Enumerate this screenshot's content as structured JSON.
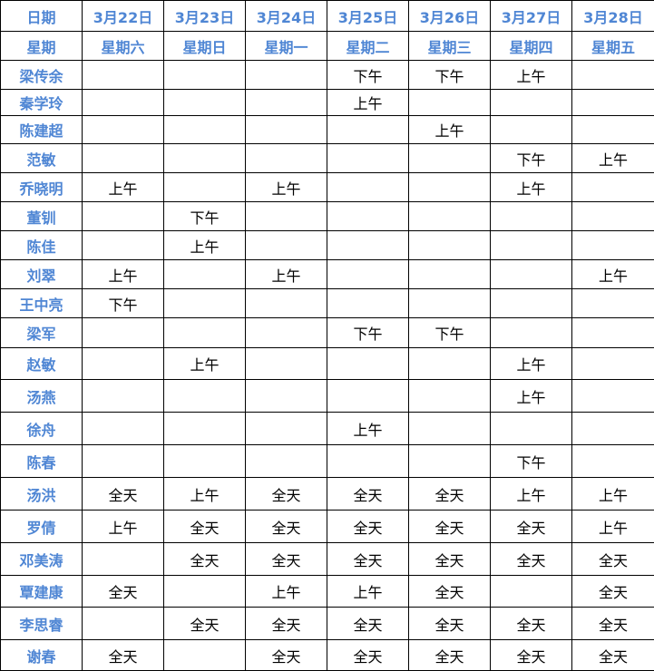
{
  "header": {
    "date_label": "日期",
    "weekday_label": "星期",
    "dates": [
      "3月22日",
      "3月23日",
      "3月24日",
      "3月25日",
      "3月26日",
      "3月27日",
      "3月28日"
    ],
    "weekdays": [
      "星期六",
      "星期日",
      "星期一",
      "星期二",
      "星期三",
      "星期四",
      "星期五"
    ]
  },
  "rows": [
    {
      "name": "梁传余",
      "cells": [
        "",
        "",
        "",
        "下午",
        "下午",
        "上午",
        ""
      ]
    },
    {
      "name": "秦学玲",
      "cells": [
        "",
        "",
        "",
        "上午",
        "",
        "",
        ""
      ]
    },
    {
      "name": "陈建超",
      "cells": [
        "",
        "",
        "",
        "",
        "上午",
        "",
        ""
      ]
    },
    {
      "name": "范敏",
      "cells": [
        "",
        "",
        "",
        "",
        "",
        "下午",
        "上午"
      ]
    },
    {
      "name": "乔晓明",
      "cells": [
        "上午",
        "",
        "上午",
        "",
        "",
        "上午",
        ""
      ]
    },
    {
      "name": "董钏",
      "cells": [
        "",
        "下午",
        "",
        "",
        "",
        "",
        ""
      ]
    },
    {
      "name": "陈佳",
      "cells": [
        "",
        "上午",
        "",
        "",
        "",
        "",
        ""
      ]
    },
    {
      "name": "刘翠",
      "cells": [
        "上午",
        "",
        "上午",
        "",
        "",
        "",
        "上午"
      ]
    },
    {
      "name": "王中亮",
      "cells": [
        "下午",
        "",
        "",
        "",
        "",
        "",
        ""
      ]
    },
    {
      "name": "梁军",
      "cells": [
        "",
        "",
        "",
        "下午",
        "下午",
        "",
        ""
      ]
    },
    {
      "name": "赵敏",
      "cells": [
        "",
        "上午",
        "",
        "",
        "",
        "上午",
        ""
      ]
    },
    {
      "name": "汤燕",
      "cells": [
        "",
        "",
        "",
        "",
        "",
        "上午",
        ""
      ]
    },
    {
      "name": "徐舟",
      "cells": [
        "",
        "",
        "",
        "上午",
        "",
        "",
        ""
      ]
    },
    {
      "name": "陈春",
      "cells": [
        "",
        "",
        "",
        "",
        "",
        "下午",
        ""
      ]
    },
    {
      "name": "汤洪",
      "cells": [
        "全天",
        "上午",
        "全天",
        "全天",
        "全天",
        "上午",
        "上午"
      ]
    },
    {
      "name": "罗倩",
      "cells": [
        "上午",
        "全天",
        "全天",
        "全天",
        "全天",
        "全天",
        "上午"
      ]
    },
    {
      "name": "邓美涛",
      "cells": [
        "",
        "全天",
        "全天",
        "全天",
        "全天",
        "全天",
        "全天"
      ]
    },
    {
      "name": "覃建康",
      "cells": [
        "全天",
        "",
        "上午",
        "上午",
        "全天",
        "",
        "全天"
      ]
    },
    {
      "name": "李思睿",
      "cells": [
        "",
        "全天",
        "全天",
        "全天",
        "全天",
        "全天",
        "全天"
      ]
    },
    {
      "name": "谢春",
      "cells": [
        "全天",
        "",
        "全天",
        "全天",
        "全天",
        "全天",
        "全天"
      ]
    }
  ]
}
